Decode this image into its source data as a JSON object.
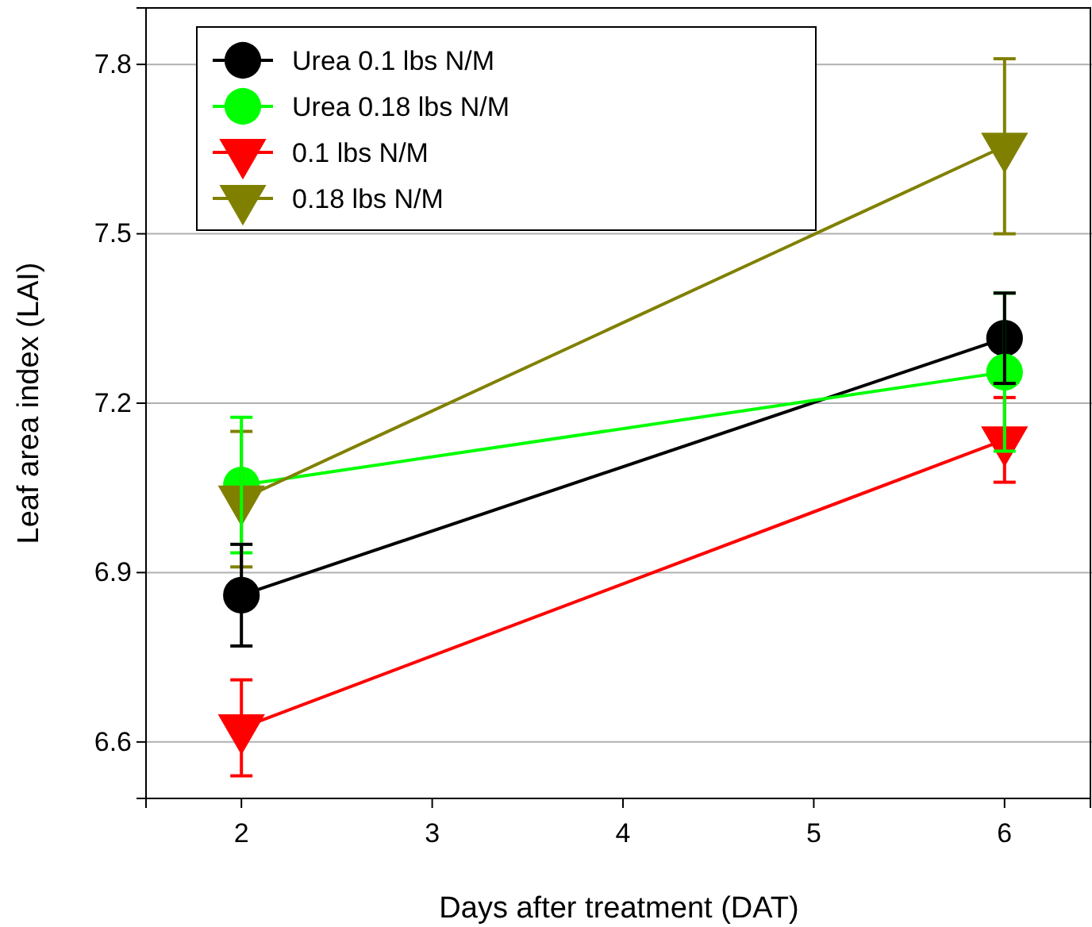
{
  "chart_data": {
    "type": "line",
    "xlabel": "Days after treatment (DAT)",
    "ylabel": "Leaf area index (LAI)",
    "x": [
      2,
      6
    ],
    "xlim": [
      1.5,
      6.45
    ],
    "xticks": [
      2,
      3,
      4,
      5,
      6
    ],
    "ylim": [
      6.5,
      7.9
    ],
    "yticks": [
      6.6,
      6.9,
      7.2,
      7.5,
      7.8
    ],
    "grid": "y",
    "legend": "top left",
    "series": [
      {
        "name": "Urea 0.1 lbs N/M",
        "color": "#000000",
        "marker": "circle",
        "values": [
          6.86,
          7.315
        ],
        "errors": [
          0.09,
          0.08
        ]
      },
      {
        "name": "Urea 0.18 lbs N/M",
        "color": "#00ff00",
        "marker": "circle",
        "values": [
          7.055,
          7.255
        ],
        "errors": [
          0.12,
          0.14
        ]
      },
      {
        "name": "0.1 lbs N/M",
        "color": "#ff0000",
        "marker": "triangle",
        "values": [
          6.625,
          7.135
        ],
        "errors": [
          0.085,
          0.075
        ]
      },
      {
        "name": "0.18 lbs N/M",
        "color": "#808000",
        "marker": "triangle",
        "values": [
          7.03,
          7.655
        ],
        "errors": [
          0.12,
          0.155
        ]
      }
    ]
  }
}
